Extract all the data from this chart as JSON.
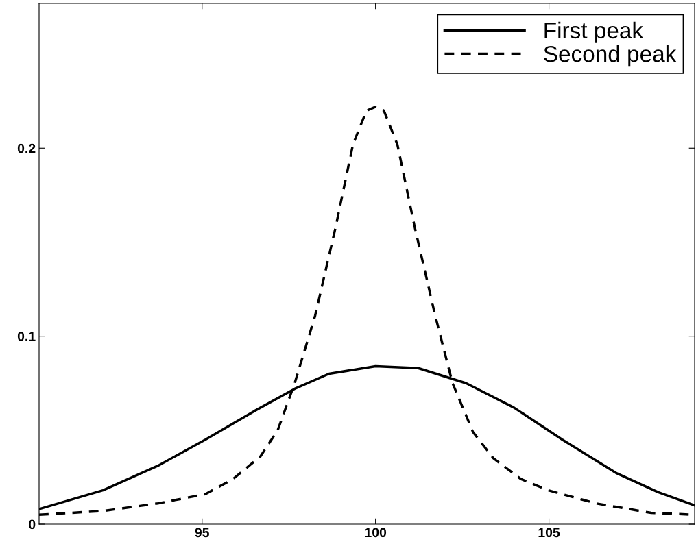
{
  "chart_data": {
    "type": "line",
    "xlim": [
      90.3,
      109.2
    ],
    "ylim": [
      0,
      0.277
    ],
    "xticks": [
      95,
      100,
      105
    ],
    "yticks": [
      0,
      0.1,
      0.2
    ],
    "grid": false,
    "legend": "top right",
    "marker": "none",
    "series": [
      {
        "name": "First peak",
        "color": "#000000",
        "line_style": "solid",
        "x": [
          90.3,
          92.14,
          93.72,
          95.1,
          96.49,
          97.67,
          98.66,
          100.0,
          101.23,
          102.61,
          103.99,
          105.38,
          106.96,
          108.15,
          109.2
        ],
        "values": [
          0.008,
          0.018,
          0.031,
          0.045,
          0.06,
          0.072,
          0.08,
          0.084,
          0.083,
          0.075,
          0.062,
          0.045,
          0.027,
          0.017,
          0.01
        ]
      },
      {
        "name": "Second peak",
        "color": "#000000",
        "line_style": "dashed",
        "x": [
          90.3,
          92.14,
          93.72,
          95.1,
          95.89,
          96.68,
          97.18,
          97.67,
          98.26,
          98.85,
          99.35,
          99.74,
          100.0,
          100.24,
          100.63,
          101.13,
          101.72,
          102.22,
          102.81,
          103.4,
          104.19,
          104.98,
          106.37,
          107.95,
          109.2
        ],
        "values": [
          0.005,
          0.007,
          0.011,
          0.016,
          0.024,
          0.036,
          0.05,
          0.075,
          0.111,
          0.158,
          0.202,
          0.22,
          0.222,
          0.22,
          0.202,
          0.158,
          0.111,
          0.075,
          0.049,
          0.035,
          0.024,
          0.018,
          0.011,
          0.006,
          0.005
        ]
      }
    ]
  }
}
